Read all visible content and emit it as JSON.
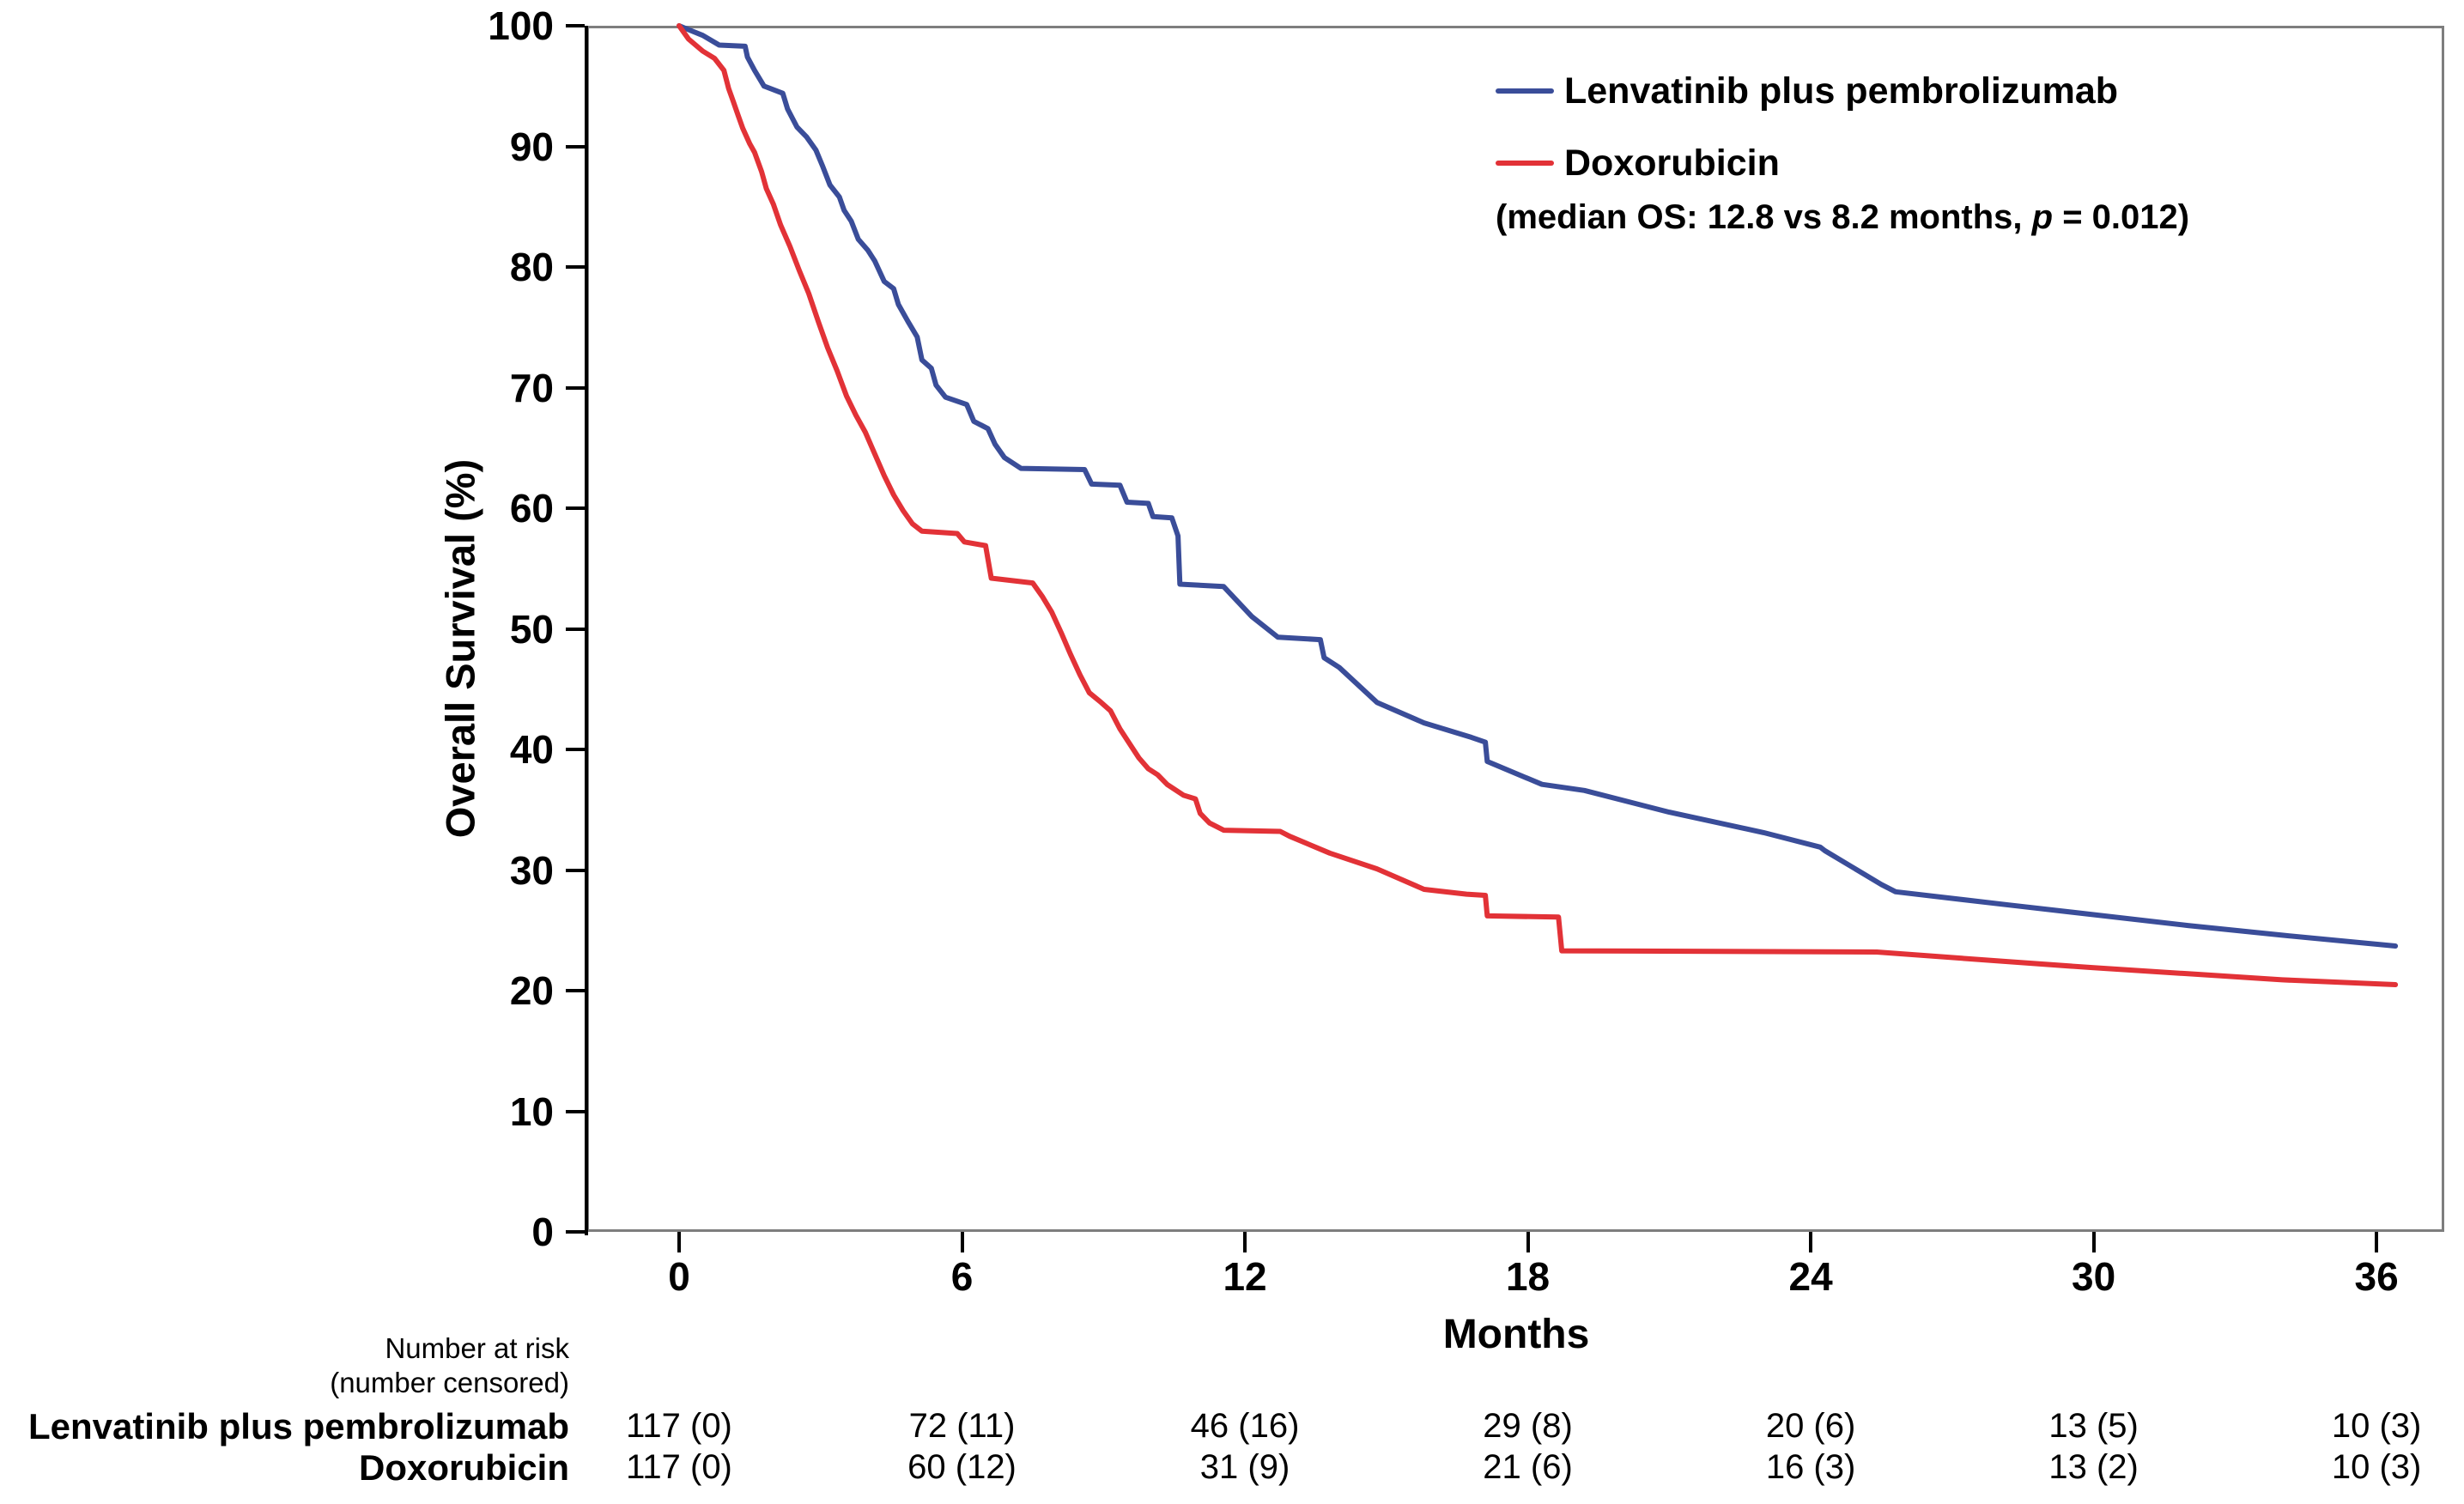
{
  "figure": {
    "background": "#FFFFFF",
    "frame_color": "#7E7E7E",
    "axis_color": "#000000",
    "legend": {
      "annotation": {
        "prefix": "(median OS: 12.8 vs 8.2 months, ",
        "p_symbol": "p",
        "suffix": " = 0.012)"
      }
    },
    "risk_table": {
      "header_line1": "Number at risk",
      "header_line2": "(number censored)",
      "rows": [
        {
          "label": "Lenvatinib plus pembrolizumab",
          "values": [
            "117 (0)",
            "72 (11)",
            "46 (16)",
            "29 (8)",
            "20 (6)",
            "13 (5)",
            "10 (3)"
          ]
        },
        {
          "label": "Doxorubicin",
          "values": [
            "117 (0)",
            "60 (12)",
            "31 (9)",
            "21 (6)",
            "16 (3)",
            "13 (2)",
            "10 (3)"
          ]
        }
      ]
    }
  },
  "chart_data": {
    "type": "line",
    "subtype": "kaplan-meier-step",
    "title": "",
    "xlabel": "Months",
    "ylabel": "Overall Survival (%)",
    "xlim": [
      0,
      37.5
    ],
    "ylim": [
      0,
      100
    ],
    "x_ticks": [
      0,
      6,
      12,
      18,
      24,
      30,
      36
    ],
    "y_ticks": [
      0,
      10,
      20,
      30,
      40,
      50,
      60,
      70,
      80,
      90,
      100
    ],
    "grid": false,
    "legend_position": "top-right",
    "p_value": "0.012",
    "median_os_label": "median OS: 12.8 vs 8.2 months",
    "series": [
      {
        "name": "Lenvatinib plus pembrolizumab",
        "color": "#3A4D99",
        "median_os_months": 12.8,
        "points": [
          [
            0,
            100
          ],
          [
            0.25,
            99.6
          ],
          [
            0.5,
            99.2
          ],
          [
            0.85,
            98.4
          ],
          [
            1.4,
            98.3
          ],
          [
            1.45,
            97.4
          ],
          [
            1.6,
            96.3
          ],
          [
            1.8,
            95.0
          ],
          [
            2.2,
            94.4
          ],
          [
            2.3,
            93.1
          ],
          [
            2.5,
            91.6
          ],
          [
            2.7,
            90.8
          ],
          [
            2.9,
            89.7
          ],
          [
            3.05,
            88.3
          ],
          [
            3.2,
            86.8
          ],
          [
            3.4,
            85.8
          ],
          [
            3.5,
            84.7
          ],
          [
            3.65,
            83.8
          ],
          [
            3.8,
            82.3
          ],
          [
            4.0,
            81.4
          ],
          [
            4.15,
            80.5
          ],
          [
            4.35,
            78.8
          ],
          [
            4.55,
            78.2
          ],
          [
            4.65,
            76.9
          ],
          [
            4.85,
            75.5
          ],
          [
            5.05,
            74.2
          ],
          [
            5.15,
            72.3
          ],
          [
            5.35,
            71.6
          ],
          [
            5.45,
            70.2
          ],
          [
            5.65,
            69.2
          ],
          [
            6.1,
            68.6
          ],
          [
            6.25,
            67.2
          ],
          [
            6.55,
            66.6
          ],
          [
            6.7,
            65.3
          ],
          [
            6.9,
            64.2
          ],
          [
            7.25,
            63.3
          ],
          [
            8.6,
            63.2
          ],
          [
            8.75,
            62.0
          ],
          [
            9.35,
            61.9
          ],
          [
            9.5,
            60.5
          ],
          [
            9.95,
            60.4
          ],
          [
            10.05,
            59.3
          ],
          [
            10.45,
            59.2
          ],
          [
            10.58,
            57.7
          ],
          [
            10.62,
            53.7
          ],
          [
            11.55,
            53.5
          ],
          [
            12.15,
            51.0
          ],
          [
            12.7,
            49.3
          ],
          [
            13.6,
            49.1
          ],
          [
            13.68,
            47.6
          ],
          [
            14.0,
            46.8
          ],
          [
            14.8,
            43.9
          ],
          [
            15.8,
            42.2
          ],
          [
            16.8,
            41.0
          ],
          [
            17.1,
            40.6
          ],
          [
            17.14,
            39.0
          ],
          [
            18.3,
            37.1
          ],
          [
            19.2,
            36.6
          ],
          [
            21,
            34.8
          ],
          [
            23,
            33.1
          ],
          [
            24.2,
            31.9
          ],
          [
            24.3,
            31.6
          ],
          [
            25.5,
            28.8
          ],
          [
            25.8,
            28.2
          ],
          [
            28.2,
            27.1
          ],
          [
            30,
            26.3
          ],
          [
            32,
            25.4
          ],
          [
            34,
            24.6
          ],
          [
            36.4,
            23.7
          ]
        ]
      },
      {
        "name": "Doxorubicin",
        "color": "#E23237",
        "median_os_months": 8.2,
        "points": [
          [
            0,
            100
          ],
          [
            0.2,
            98.9
          ],
          [
            0.5,
            97.9
          ],
          [
            0.75,
            97.3
          ],
          [
            0.95,
            96.3
          ],
          [
            1.05,
            94.8
          ],
          [
            1.15,
            93.7
          ],
          [
            1.25,
            92.6
          ],
          [
            1.35,
            91.5
          ],
          [
            1.5,
            90.2
          ],
          [
            1.6,
            89.5
          ],
          [
            1.75,
            87.9
          ],
          [
            1.85,
            86.5
          ],
          [
            2.0,
            85.2
          ],
          [
            2.15,
            83.5
          ],
          [
            2.35,
            81.7
          ],
          [
            2.55,
            79.7
          ],
          [
            2.75,
            77.8
          ],
          [
            2.95,
            75.5
          ],
          [
            3.15,
            73.3
          ],
          [
            3.35,
            71.4
          ],
          [
            3.55,
            69.3
          ],
          [
            3.75,
            67.7
          ],
          [
            3.95,
            66.3
          ],
          [
            4.15,
            64.5
          ],
          [
            4.35,
            62.7
          ],
          [
            4.55,
            61.1
          ],
          [
            4.75,
            59.8
          ],
          [
            4.95,
            58.7
          ],
          [
            5.15,
            58.1
          ],
          [
            5.9,
            57.9
          ],
          [
            6.05,
            57.2
          ],
          [
            6.5,
            56.9
          ],
          [
            6.62,
            54.2
          ],
          [
            7.5,
            53.8
          ],
          [
            7.7,
            52.7
          ],
          [
            7.9,
            51.4
          ],
          [
            8.1,
            49.7
          ],
          [
            8.3,
            47.9
          ],
          [
            8.5,
            46.2
          ],
          [
            8.7,
            44.7
          ],
          [
            8.95,
            43.9
          ],
          [
            9.15,
            43.2
          ],
          [
            9.35,
            41.7
          ],
          [
            9.55,
            40.5
          ],
          [
            9.75,
            39.3
          ],
          [
            9.95,
            38.4
          ],
          [
            10.15,
            37.9
          ],
          [
            10.35,
            37.1
          ],
          [
            10.7,
            36.2
          ],
          [
            10.95,
            35.9
          ],
          [
            11.05,
            34.7
          ],
          [
            11.25,
            33.9
          ],
          [
            11.55,
            33.3
          ],
          [
            12.75,
            33.2
          ],
          [
            12.95,
            32.8
          ],
          [
            13.8,
            31.4
          ],
          [
            14.8,
            30.1
          ],
          [
            15.8,
            28.4
          ],
          [
            16.7,
            28.0
          ],
          [
            17.1,
            27.9
          ],
          [
            17.14,
            26.2
          ],
          [
            18.65,
            26.1
          ],
          [
            18.72,
            23.3
          ],
          [
            25.4,
            23.2
          ],
          [
            28.2,
            22.4
          ],
          [
            30,
            21.9
          ],
          [
            32,
            21.4
          ],
          [
            34,
            20.9
          ],
          [
            36.4,
            20.5
          ]
        ]
      }
    ]
  }
}
